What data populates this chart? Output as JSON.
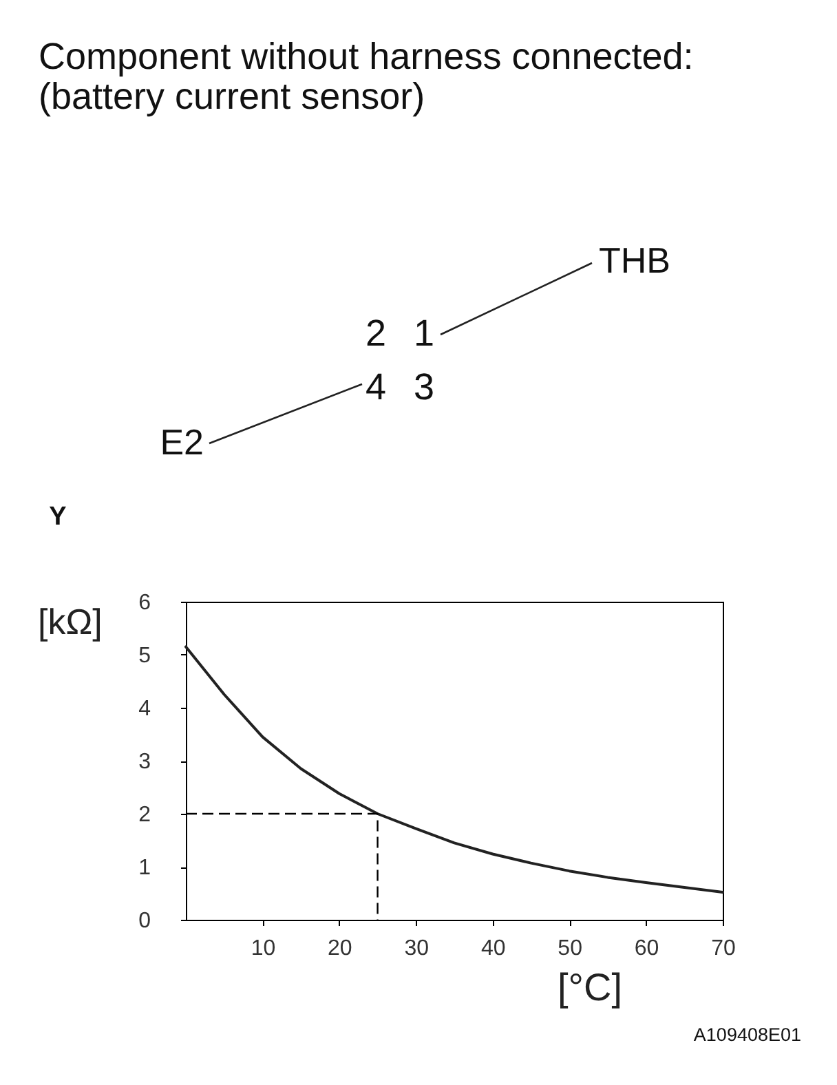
{
  "chart_data": {
    "type": "line",
    "title": "Component without harness connected:\n(battery current sensor)",
    "xlabel": "[°C]",
    "ylabel": "[kΩ]",
    "annotations": [
      "THB",
      "E2",
      "2",
      "1",
      "4",
      "3",
      "Y",
      "A109408E01"
    ],
    "xlim": [
      0,
      70
    ],
    "xticks": [
      10,
      20,
      30,
      40,
      50,
      60,
      70
    ],
    "ylim": [
      0,
      6
    ],
    "yticks": [
      0,
      1,
      2,
      3,
      4,
      5,
      6
    ],
    "grid": false,
    "marker": "none",
    "series": [
      {
        "color": "#222222",
        "line_style": "solid",
        "x": [
          0,
          5,
          10,
          15,
          20,
          25,
          30,
          35,
          40,
          45,
          50,
          55,
          60,
          65,
          70
        ],
        "values": [
          5.15,
          4.25,
          3.45,
          2.85,
          2.38,
          2.0,
          1.72,
          1.45,
          1.24,
          1.07,
          0.92,
          0.8,
          0.7,
          0.61,
          0.52
        ]
      },
      {
        "color": "#000000",
        "line_style": "dashed",
        "x": [
          0,
          25,
          25
        ],
        "values": [
          2,
          2,
          0
        ]
      }
    ]
  }
}
